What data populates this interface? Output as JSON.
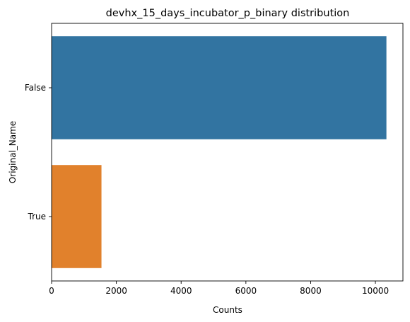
{
  "chart_data": {
    "type": "bar",
    "orientation": "horizontal",
    "title": "devhx_15_days_incubator_p_binary distribution",
    "xlabel": "Counts",
    "ylabel": "Original_Name",
    "categories": [
      "False",
      "True"
    ],
    "values": [
      10340,
      1540
    ],
    "colors": [
      "#3274a1",
      "#e1812c"
    ],
    "xlim": [
      0,
      10850
    ],
    "xticks": [
      0,
      2000,
      4000,
      6000,
      8000,
      10000
    ],
    "grid": false,
    "legend": "none"
  }
}
